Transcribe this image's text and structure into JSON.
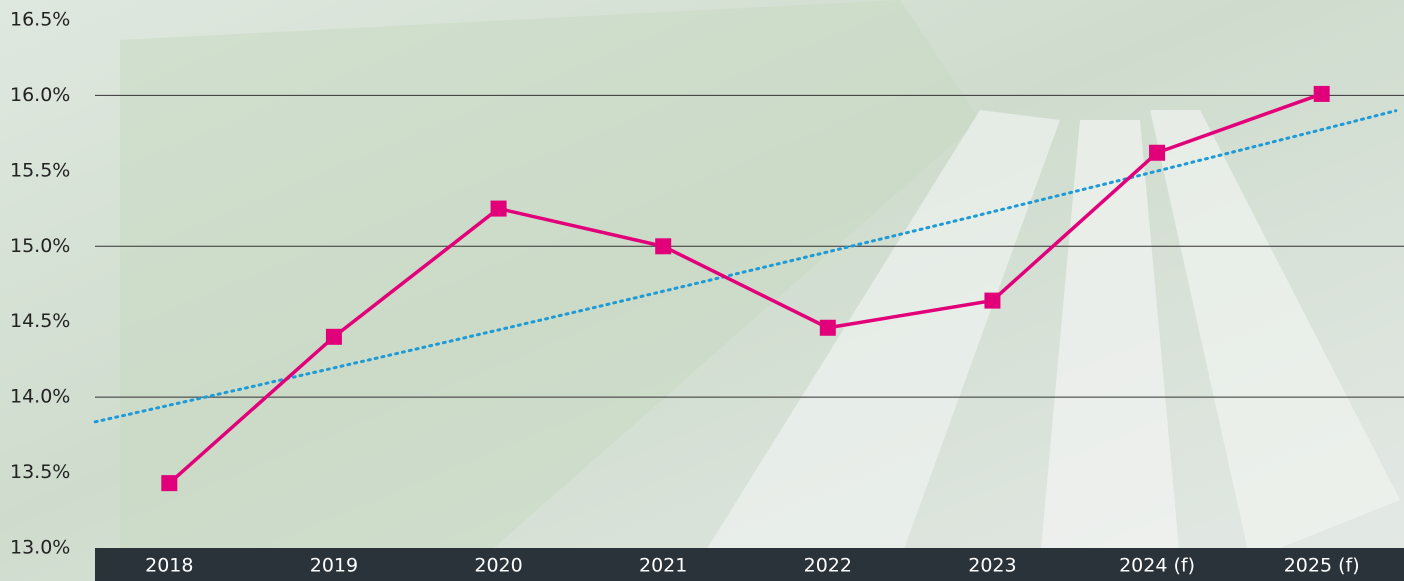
{
  "chart_data": {
    "type": "line",
    "categories": [
      "2018",
      "2019",
      "2020",
      "2021",
      "2022",
      "2023",
      "2024 (f)",
      "2025 (f)"
    ],
    "series": [
      {
        "color": "#e2007a",
        "values": [
          13.43,
          14.4,
          15.25,
          15.0,
          14.46,
          14.64,
          15.62,
          16.01
        ]
      }
    ],
    "trendline": {
      "kind": "exponential",
      "color": "#1e9ad6"
    },
    "ylim": [
      13.0,
      16.5
    ],
    "yticks": [
      {
        "value": 13.0,
        "label": "13.0%"
      },
      {
        "value": 13.5,
        "label": "13.5%"
      },
      {
        "value": 14.0,
        "label": "14.0%"
      },
      {
        "value": 14.5,
        "label": "14.5%"
      },
      {
        "value": 15.0,
        "label": "15.0%"
      },
      {
        "value": 15.5,
        "label": "15.5%"
      },
      {
        "value": 16.0,
        "label": "16.0%"
      },
      {
        "value": 16.5,
        "label": "16.5%"
      }
    ],
    "grid": true
  }
}
